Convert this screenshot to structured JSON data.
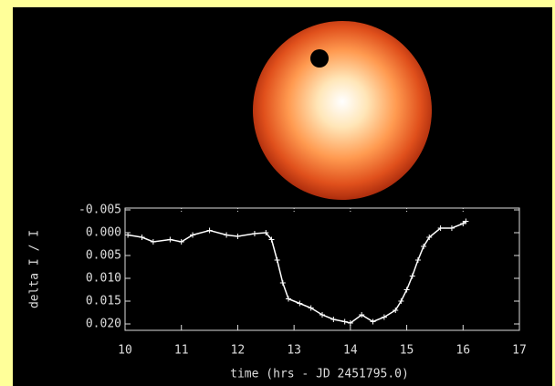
{
  "chart_data": {
    "type": "line",
    "xlabel": "time (hrs - JD 2451795.0)",
    "ylabel": "delta I / I",
    "x": [
      10.05,
      10.3,
      10.5,
      10.8,
      11.0,
      11.2,
      11.5,
      11.8,
      12.0,
      12.3,
      12.5,
      12.6,
      12.7,
      12.8,
      12.9,
      13.1,
      13.3,
      13.5,
      13.7,
      13.9,
      14.0,
      14.2,
      14.4,
      14.6,
      14.8,
      14.9,
      15.0,
      15.1,
      15.2,
      15.3,
      15.4,
      15.6,
      15.8,
      16.0,
      16.05
    ],
    "series": [
      {
        "color": "#ffffff",
        "values": [
          0.0005,
          0.001,
          0.002,
          0.0015,
          0.002,
          0.0005,
          -0.0005,
          0.0005,
          0.0008,
          0.0002,
          0.0,
          0.0015,
          0.006,
          0.011,
          0.0145,
          0.0155,
          0.0165,
          0.018,
          0.019,
          0.0195,
          0.0198,
          0.018,
          0.0195,
          0.0185,
          0.017,
          0.015,
          0.0125,
          0.0095,
          0.006,
          0.003,
          0.001,
          -0.001,
          -0.001,
          -0.002,
          -0.0025
        ]
      }
    ],
    "xlim": [
      10,
      17
    ],
    "xticks": [
      10,
      11,
      12,
      13,
      14,
      15,
      16,
      17
    ],
    "ylim": [
      0.0214,
      -0.0054
    ],
    "yticks": [
      {
        "value": -0.005,
        "label": "-0.005"
      },
      {
        "value": 0,
        "label": "0.000"
      },
      {
        "value": 0.005,
        "label": "0.005"
      },
      {
        "value": 0.01,
        "label": "0.010"
      },
      {
        "value": 0.015,
        "label": "0.015"
      },
      {
        "value": 0.02,
        "label": "0.020"
      }
    ]
  }
}
